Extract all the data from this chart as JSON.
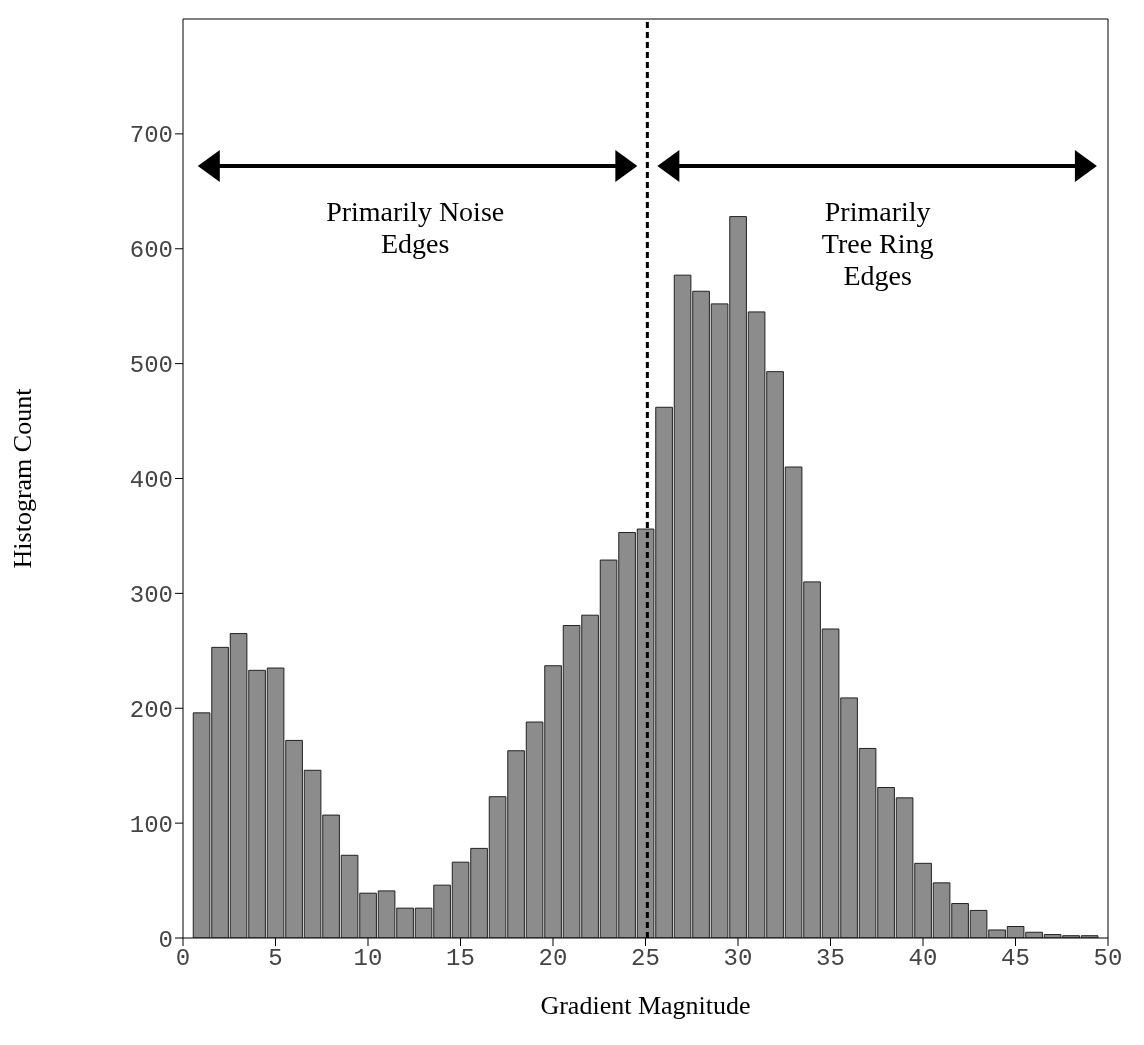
{
  "chart_data": {
    "type": "histogram",
    "xlabel": "Gradient Magnitude",
    "ylabel": "Histogram Count",
    "bins": [
      0.5,
      1.5,
      2.5,
      3.5,
      4.5,
      5.5,
      6.5,
      7.5,
      8.5,
      9.5,
      10.5,
      11.5,
      12.5,
      13.5,
      14.5,
      15.5,
      16.5,
      17.5,
      18.5,
      19.5,
      20.5,
      21.5,
      22.5,
      23.5,
      24.5,
      25.5,
      26.5,
      27.5,
      28.5,
      29.5,
      30.5,
      31.5,
      32.5,
      33.5,
      34.5,
      35.5,
      36.5,
      37.5,
      38.5,
      39.5,
      40.5,
      41.5,
      42.5,
      43.5,
      44.5,
      45.5,
      46.5,
      47.5,
      48.5,
      49.5
    ],
    "values": [
      196,
      253,
      265,
      233,
      235,
      172,
      146,
      107,
      72,
      39,
      41,
      26,
      26,
      46,
      66,
      78,
      123,
      163,
      188,
      237,
      272,
      281,
      329,
      353,
      356,
      462,
      577,
      563,
      552,
      628,
      545,
      493,
      410,
      310,
      269,
      209,
      165,
      131,
      122,
      65,
      48,
      30,
      24,
      7,
      10,
      5,
      3,
      2,
      2
    ],
    "color": "#8c8c8c",
    "xlim": [
      0,
      50
    ],
    "xticks": [
      0,
      5,
      10,
      15,
      20,
      25,
      30,
      35,
      40,
      45,
      50
    ],
    "ylim": [
      0,
      800
    ],
    "yticks": [
      0,
      100,
      200,
      300,
      400,
      500,
      600,
      700
    ],
    "ref_lines": [
      {
        "axis": "x",
        "value": 25.1,
        "line_style": "dashed",
        "color": "#000000"
      }
    ],
    "annotations": [
      "Primarily Noise\nEdges",
      "Primarily\nTree Ring\nEdges"
    ],
    "grid": false,
    "legend": false
  }
}
